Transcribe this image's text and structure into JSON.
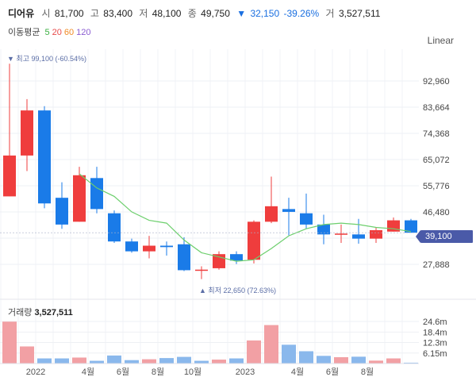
{
  "header": {
    "name": "디어유",
    "open_label": "시",
    "open": "81,700",
    "high_label": "고",
    "high": "83,400",
    "low_label": "저",
    "low": "48,100",
    "close_label": "종",
    "close": "49,750",
    "change_arrow": "▼",
    "change": "32,150",
    "change_pct": "-39.26%",
    "volume_label": "거",
    "volume": "3,527,511"
  },
  "moving_average": {
    "label": "이동평균",
    "periods": [
      {
        "text": "5",
        "color": "#3cb043"
      },
      {
        "text": "20",
        "color": "#e84a4a"
      },
      {
        "text": "60",
        "color": "#f08a24"
      },
      {
        "text": "120",
        "color": "#8a5cd1"
      }
    ]
  },
  "scale_button": "Linear",
  "current_price_tag": "39,100",
  "volume_panel": {
    "label": "거래량",
    "value": "3,527,511"
  },
  "colors": {
    "up": "#ef3d3d",
    "down": "#1a7be8",
    "ma_line": "#6dcf6d",
    "vol_up": "#f2a0a4",
    "vol_down": "#8ab8ec",
    "annot": "#5b6ea6"
  },
  "chart_data": [
    {
      "type": "candlestick",
      "interval": "monthly",
      "y_ticks": [
        "92,960",
        "83,664",
        "74,368",
        "65,072",
        "55,776",
        "46,480",
        "37,184",
        "27,888"
      ],
      "y_range": [
        20000,
        101000
      ],
      "annotations": [
        {
          "text": "▼ 최고 99,100 (-60.54%)",
          "value": 99100
        },
        {
          "text": "▲ 최저 22,650 (72.63%)",
          "value": 22650
        }
      ],
      "candles": [
        {
          "open": 52000,
          "high": 99100,
          "low": 52000,
          "close": 66500
        },
        {
          "open": 66500,
          "high": 86500,
          "low": 61000,
          "close": 82500
        },
        {
          "open": 82500,
          "high": 84000,
          "low": 47800,
          "close": 49500
        },
        {
          "open": 51500,
          "high": 57000,
          "low": 40500,
          "close": 42000
        },
        {
          "open": 43000,
          "high": 62500,
          "low": 43000,
          "close": 59500
        },
        {
          "open": 58500,
          "high": 62500,
          "low": 46000,
          "close": 47500
        },
        {
          "open": 46000,
          "high": 47000,
          "low": 35500,
          "close": 36000
        },
        {
          "open": 36000,
          "high": 37000,
          "low": 32000,
          "close": 32500
        },
        {
          "open": 32500,
          "high": 38000,
          "low": 30000,
          "close": 34500
        },
        {
          "open": 34500,
          "high": 36000,
          "low": 31000,
          "close": 34000
        },
        {
          "open": 35000,
          "high": 37500,
          "low": 25500,
          "close": 25800
        },
        {
          "open": 25800,
          "high": 27200,
          "low": 22650,
          "close": 26000
        },
        {
          "open": 26500,
          "high": 32500,
          "low": 26000,
          "close": 31500
        },
        {
          "open": 31500,
          "high": 32500,
          "low": 28000,
          "close": 29200
        },
        {
          "open": 29500,
          "high": 43500,
          "low": 28200,
          "close": 43000
        },
        {
          "open": 43000,
          "high": 59000,
          "low": 42500,
          "close": 48500
        },
        {
          "open": 47500,
          "high": 51500,
          "low": 38200,
          "close": 46500
        },
        {
          "open": 46000,
          "high": 53000,
          "low": 40500,
          "close": 42000
        },
        {
          "open": 42000,
          "high": 45500,
          "low": 35000,
          "close": 38500
        },
        {
          "open": 38500,
          "high": 42000,
          "low": 35500,
          "close": 38800
        },
        {
          "open": 38500,
          "high": 44000,
          "low": 35200,
          "close": 37000
        },
        {
          "open": 37000,
          "high": 41000,
          "low": 35500,
          "close": 40000
        },
        {
          "open": 39500,
          "high": 44500,
          "low": 39500,
          "close": 43500
        },
        {
          "open": 43500,
          "high": 44000,
          "low": 39100,
          "close": 39100
        }
      ],
      "ma_line": [
        null,
        null,
        null,
        null,
        60000,
        55000,
        52000,
        46500,
        43500,
        42500,
        36500,
        32000,
        30500,
        29000,
        29500,
        33500,
        38000,
        40500,
        42000,
        42500,
        42000,
        41000,
        40500,
        39500
      ]
    },
    {
      "type": "bar",
      "y_ticks": [
        "24.6m",
        "18.4m",
        "12.3m",
        "6.15m"
      ],
      "y_range": [
        0,
        31000000
      ],
      "x_labels": [
        {
          "text": "2022",
          "index": 2
        },
        {
          "text": "4월",
          "index": 5
        },
        {
          "text": "6월",
          "index": 7
        },
        {
          "text": "8월",
          "index": 9
        },
        {
          "text": "10월",
          "index": 11
        },
        {
          "text": "2023",
          "index": 14
        },
        {
          "text": "4월",
          "index": 17
        },
        {
          "text": "6월",
          "index": 19
        },
        {
          "text": "8월",
          "index": 21
        }
      ],
      "volumes": [
        {
          "value": 24500000,
          "dir": "up"
        },
        {
          "value": 10000000,
          "dir": "up"
        },
        {
          "value": 3000000,
          "dir": "down"
        },
        {
          "value": 3000000,
          "dir": "down"
        },
        {
          "value": 3500000,
          "dir": "up"
        },
        {
          "value": 1600000,
          "dir": "down"
        },
        {
          "value": 4700000,
          "dir": "down"
        },
        {
          "value": 2000000,
          "dir": "down"
        },
        {
          "value": 2500000,
          "dir": "up"
        },
        {
          "value": 3200000,
          "dir": "down"
        },
        {
          "value": 3900000,
          "dir": "down"
        },
        {
          "value": 1600000,
          "dir": "down"
        },
        {
          "value": 2300000,
          "dir": "up"
        },
        {
          "value": 3000000,
          "dir": "down"
        },
        {
          "value": 13500000,
          "dir": "up"
        },
        {
          "value": 22500000,
          "dir": "up"
        },
        {
          "value": 11000000,
          "dir": "down"
        },
        {
          "value": 7200000,
          "dir": "down"
        },
        {
          "value": 4500000,
          "dir": "down"
        },
        {
          "value": 3700000,
          "dir": "up"
        },
        {
          "value": 4000000,
          "dir": "down"
        },
        {
          "value": 1700000,
          "dir": "up"
        },
        {
          "value": 3000000,
          "dir": "up"
        },
        {
          "value": 500000,
          "dir": "down"
        }
      ]
    }
  ]
}
